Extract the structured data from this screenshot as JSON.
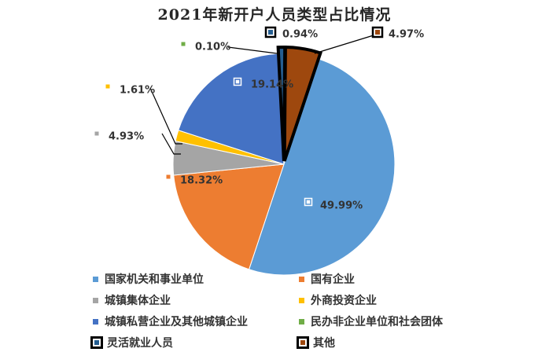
{
  "chart_data": {
    "type": "pie",
    "title": "2021年新开户人员类型占比情况",
    "slices": [
      {
        "name": "国家机关和事业单位",
        "value": 49.99,
        "label": "49.99%",
        "color": "#5B9BD5",
        "highlight": false
      },
      {
        "name": "国有企业",
        "value": 18.32,
        "label": "18.32%",
        "color": "#ED7D31",
        "highlight": false
      },
      {
        "name": "城镇集体企业",
        "value": 4.93,
        "label": "4.93%",
        "color": "#A5A5A5",
        "highlight": false
      },
      {
        "name": "外商投资企业",
        "value": 1.61,
        "label": "1.61%",
        "color": "#FFC000",
        "highlight": false
      },
      {
        "name": "城镇私营企业及其他城镇企业",
        "value": 19.14,
        "label": "19.14%",
        "color": "#4472C4",
        "highlight": false
      },
      {
        "name": "民办非企业单位和社会团体",
        "value": 0.1,
        "label": "0.10%",
        "color": "#70AD47",
        "highlight": false
      },
      {
        "name": "灵活就业人员",
        "value": 0.94,
        "label": "0.94%",
        "color": "#255E91",
        "highlight": true
      },
      {
        "name": "其他",
        "value": 4.97,
        "label": "4.97%",
        "color": "#9E480E",
        "highlight": true
      }
    ],
    "legend_position": "bottom"
  }
}
